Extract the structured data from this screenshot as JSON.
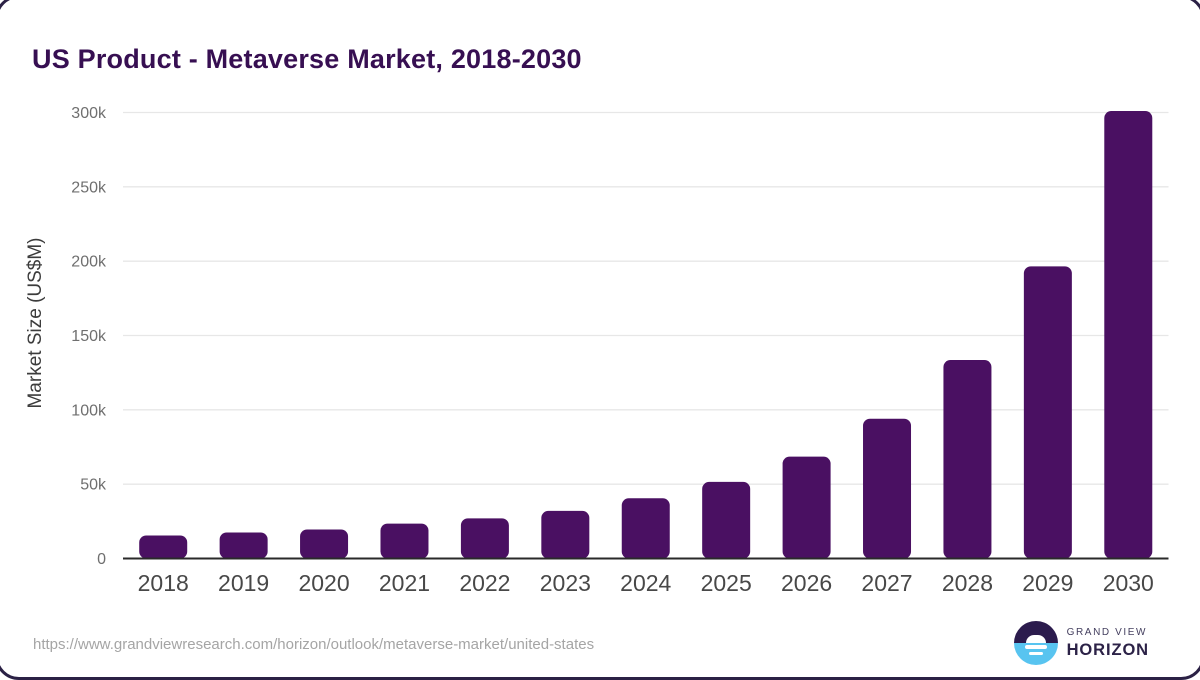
{
  "title": "US Product - Metaverse Market, 2018-2030",
  "footer": {
    "source_url": "https://www.grandviewresearch.com/horizon/outlook/metaverse-market/united-states",
    "logo": {
      "brand_top": "GRAND VIEW",
      "brand_bottom": "HORIZON"
    }
  },
  "colors": {
    "bar": "#4a1062",
    "title": "#370f52",
    "grid": "#e7e7e7",
    "axis": "#2a2a2a",
    "y_tick_label": "#6f6f6f",
    "x_tick_label": "#484848",
    "y_axis_title": "#3c3c3c",
    "url_text": "#a5a5a5",
    "logo_dark": "#2b1b4d",
    "logo_blue": "#58c4f0"
  },
  "chart_data": {
    "type": "bar",
    "title": "US Product - Metaverse Market, 2018-2030",
    "categories": [
      "2018",
      "2019",
      "2020",
      "2021",
      "2022",
      "2023",
      "2024",
      "2025",
      "2026",
      "2027",
      "2028",
      "2029",
      "2030"
    ],
    "values": [
      15500,
      17500,
      19500,
      23500,
      27000,
      32000,
      40500,
      51500,
      68500,
      94000,
      133500,
      196500,
      301000
    ],
    "series_name": "Market Size",
    "xlabel": "",
    "ylabel": "Market Size (US$M)",
    "ylim": [
      0,
      300000
    ],
    "yticks": [
      {
        "value": 0,
        "label": "0"
      },
      {
        "value": 50000,
        "label": "50k"
      },
      {
        "value": 100000,
        "label": "100k"
      },
      {
        "value": 150000,
        "label": "150k"
      },
      {
        "value": 200000,
        "label": "200k"
      },
      {
        "value": 250000,
        "label": "250k"
      },
      {
        "value": 300000,
        "label": "300k"
      }
    ],
    "grid": true,
    "legend": false,
    "bar_corner_radius": 7
  }
}
